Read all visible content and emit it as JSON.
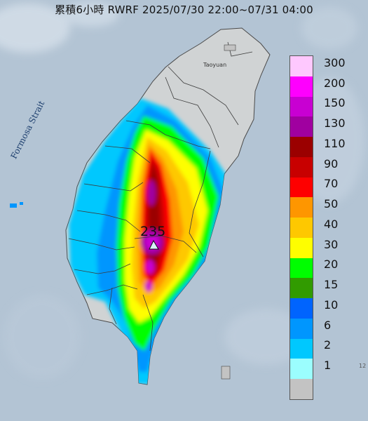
{
  "title": "累積6小時 RWRF 2025/07/30 22:00~07/31 04:00",
  "map_labels": {
    "strait": "Formosa Strait",
    "city": "Taoyuan",
    "peak_value": "235",
    "edge_text": "12"
  },
  "legend": {
    "items": [
      {
        "label": "300",
        "color": "#fec8fe"
      },
      {
        "label": "200",
        "color": "#fe00fe"
      },
      {
        "label": "150",
        "color": "#c800d2"
      },
      {
        "label": "130",
        "color": "#a000a0"
      },
      {
        "label": "110",
        "color": "#9b0000"
      },
      {
        "label": "90",
        "color": "#c80000"
      },
      {
        "label": "70",
        "color": "#fe0000"
      },
      {
        "label": "50",
        "color": "#fe9600"
      },
      {
        "label": "40",
        "color": "#fec800"
      },
      {
        "label": "30",
        "color": "#fefe00"
      },
      {
        "label": "20",
        "color": "#00fe00"
      },
      {
        "label": "15",
        "color": "#319b00"
      },
      {
        "label": "10",
        "color": "#0064fe"
      },
      {
        "label": "6",
        "color": "#0096fe"
      },
      {
        "label": "2",
        "color": "#00c8fe"
      },
      {
        "label": "1",
        "color": "#9bfefe"
      },
      {
        "label": "",
        "color": "#c3c3c3"
      }
    ]
  }
}
